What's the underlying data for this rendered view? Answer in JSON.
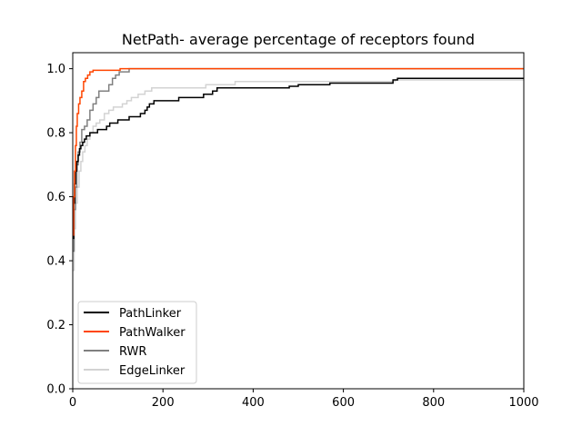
{
  "chart_data": {
    "type": "line",
    "title": "NetPath- average percentage of receptors found",
    "xlabel": "",
    "ylabel": "",
    "xlim": [
      0,
      1000
    ],
    "ylim": [
      0,
      1.05
    ],
    "x_ticks": [
      0,
      200,
      400,
      600,
      800,
      1000
    ],
    "y_ticks": [
      0.0,
      0.2,
      0.4,
      0.6,
      0.8,
      1.0
    ],
    "x_tick_labels": [
      "0",
      "200",
      "400",
      "600",
      "800",
      "1000"
    ],
    "y_tick_labels": [
      "0.0",
      "0.2",
      "0.4",
      "0.6",
      "0.8",
      "1.0"
    ],
    "grid": false,
    "legend": {
      "placement": "lower-left"
    },
    "step": true,
    "series": [
      {
        "name": "EdgeLinker",
        "color": "#d3d3d3",
        "points": [
          [
            0,
            0.37
          ],
          [
            3,
            0.5
          ],
          [
            6,
            0.58
          ],
          [
            10,
            0.63
          ],
          [
            14,
            0.68
          ],
          [
            18,
            0.71
          ],
          [
            22,
            0.74
          ],
          [
            27,
            0.76
          ],
          [
            32,
            0.78
          ],
          [
            38,
            0.8
          ],
          [
            45,
            0.82
          ],
          [
            52,
            0.83
          ],
          [
            60,
            0.84
          ],
          [
            70,
            0.86
          ],
          [
            80,
            0.87
          ],
          [
            90,
            0.88
          ],
          [
            100,
            0.88
          ],
          [
            110,
            0.89
          ],
          [
            120,
            0.9
          ],
          [
            130,
            0.91
          ],
          [
            145,
            0.92
          ],
          [
            160,
            0.93
          ],
          [
            175,
            0.94
          ],
          [
            200,
            0.94
          ],
          [
            230,
            0.94
          ],
          [
            260,
            0.94
          ],
          [
            295,
            0.95
          ],
          [
            330,
            0.95
          ],
          [
            360,
            0.96
          ],
          [
            400,
            0.96
          ],
          [
            500,
            0.96
          ],
          [
            600,
            0.96
          ],
          [
            700,
            0.96
          ],
          [
            715,
            0.965
          ],
          [
            1000,
            0.965
          ]
        ]
      },
      {
        "name": "RWR",
        "color": "#808080",
        "points": [
          [
            0,
            0.43
          ],
          [
            3,
            0.56
          ],
          [
            6,
            0.63
          ],
          [
            9,
            0.7
          ],
          [
            12,
            0.74
          ],
          [
            16,
            0.77
          ],
          [
            20,
            0.81
          ],
          [
            26,
            0.82
          ],
          [
            32,
            0.84
          ],
          [
            38,
            0.87
          ],
          [
            45,
            0.89
          ],
          [
            52,
            0.91
          ],
          [
            58,
            0.93
          ],
          [
            65,
            0.93
          ],
          [
            72,
            0.93
          ],
          [
            80,
            0.95
          ],
          [
            88,
            0.97
          ],
          [
            95,
            0.98
          ],
          [
            103,
            0.99
          ],
          [
            112,
            0.99
          ],
          [
            125,
            1.0
          ],
          [
            1000,
            1.0
          ]
        ]
      },
      {
        "name": "PathLinker",
        "color": "#000000",
        "points": [
          [
            0,
            0.47
          ],
          [
            2,
            0.58
          ],
          [
            4,
            0.64
          ],
          [
            6,
            0.68
          ],
          [
            9,
            0.71
          ],
          [
            12,
            0.73
          ],
          [
            15,
            0.75
          ],
          [
            18,
            0.76
          ],
          [
            22,
            0.77
          ],
          [
            26,
            0.78
          ],
          [
            30,
            0.79
          ],
          [
            38,
            0.8
          ],
          [
            46,
            0.8
          ],
          [
            55,
            0.81
          ],
          [
            65,
            0.81
          ],
          [
            75,
            0.82
          ],
          [
            82,
            0.83
          ],
          [
            90,
            0.83
          ],
          [
            100,
            0.84
          ],
          [
            112,
            0.84
          ],
          [
            125,
            0.85
          ],
          [
            140,
            0.85
          ],
          [
            150,
            0.86
          ],
          [
            160,
            0.87
          ],
          [
            165,
            0.88
          ],
          [
            170,
            0.89
          ],
          [
            180,
            0.9
          ],
          [
            190,
            0.9
          ],
          [
            230,
            0.9
          ],
          [
            235,
            0.91
          ],
          [
            290,
            0.92
          ],
          [
            300,
            0.92
          ],
          [
            310,
            0.93
          ],
          [
            320,
            0.94
          ],
          [
            350,
            0.94
          ],
          [
            460,
            0.94
          ],
          [
            480,
            0.945
          ],
          [
            500,
            0.95
          ],
          [
            570,
            0.955
          ],
          [
            710,
            0.965
          ],
          [
            715,
            0.965
          ],
          [
            720,
            0.97
          ],
          [
            1000,
            0.97
          ]
        ]
      },
      {
        "name": "PathWalker",
        "color": "#ff4500",
        "points": [
          [
            0,
            0.48
          ],
          [
            2,
            0.6
          ],
          [
            4,
            0.68
          ],
          [
            6,
            0.76
          ],
          [
            8,
            0.82
          ],
          [
            10,
            0.86
          ],
          [
            13,
            0.89
          ],
          [
            16,
            0.91
          ],
          [
            20,
            0.93
          ],
          [
            24,
            0.96
          ],
          [
            28,
            0.97
          ],
          [
            33,
            0.98
          ],
          [
            38,
            0.99
          ],
          [
            45,
            0.995
          ],
          [
            100,
            0.995
          ],
          [
            105,
            1.0
          ],
          [
            285,
            1.0
          ],
          [
            1000,
            1.0
          ]
        ]
      }
    ],
    "legend_entries": [
      {
        "label": "PathLinker",
        "color": "#000000"
      },
      {
        "label": "PathWalker",
        "color": "#ff4500"
      },
      {
        "label": "RWR",
        "color": "#808080"
      },
      {
        "label": "EdgeLinker",
        "color": "#d3d3d3"
      }
    ]
  }
}
